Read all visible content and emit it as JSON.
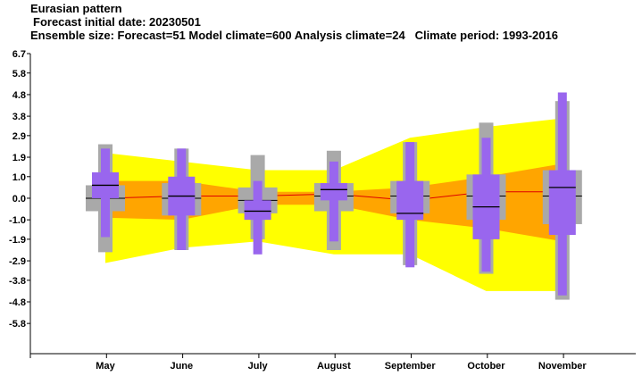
{
  "header": {
    "title": "Eurasian pattern",
    "initial_date": "Forecast initial date: 20230501",
    "ensemble": "Ensemble size: Forecast=51 Model climate=600 Analysis climate=24",
    "climate_period": "Climate period: 1993-2016"
  },
  "colors": {
    "outer_band": "#ffff00",
    "inner_band": "#ffa500",
    "climate_box": "#a9a9a9",
    "forecast_box": "#9966ee",
    "median_line": "#000000",
    "mean_line": "#dd0000"
  },
  "chart_data": {
    "type": "box",
    "title": "Eurasian pattern",
    "categories": [
      "May",
      "June",
      "July",
      "August",
      "September",
      "October",
      "November"
    ],
    "yticks": [
      6.7,
      5.8,
      4.8,
      3.8,
      2.9,
      1.9,
      1.0,
      0.0,
      -1.0,
      -1.9,
      -2.9,
      -3.8,
      -4.8,
      -5.8
    ],
    "ytick_labels": [
      "6.7",
      "5.8",
      "4.8",
      "3.8",
      "2.9",
      "1.9",
      "1.0",
      "0.0",
      "-1.0",
      "-1.9",
      "-2.9",
      "-3.8",
      "-4.8",
      "-5.8"
    ],
    "ylim": [
      -7.2,
      6.7
    ],
    "grid": false,
    "model_climate_outer_band": {
      "lower": [
        -3.0,
        -2.3,
        -2.0,
        -2.6,
        -2.6,
        -4.3,
        -4.3
      ],
      "upper": [
        2.1,
        1.7,
        1.3,
        1.3,
        2.8,
        3.3,
        3.7
      ]
    },
    "model_climate_inner_band": {
      "lower": [
        -0.9,
        -1.0,
        -0.3,
        -0.3,
        -1.0,
        -1.4,
        -2.0
      ],
      "upper": [
        0.8,
        0.8,
        0.3,
        0.3,
        0.5,
        1.0,
        1.6
      ]
    },
    "ensemble_mean": [
      0.0,
      0.1,
      0.1,
      0.2,
      -0.1,
      0.3,
      0.3
    ],
    "analysis_climate": [
      {
        "min": -2.5,
        "q25": -0.6,
        "median": 0.0,
        "q75": 0.6,
        "max": 2.5
      },
      {
        "min": -2.4,
        "q25": -0.8,
        "median": 0.0,
        "q75": 0.7,
        "max": 2.3
      },
      {
        "min": -1.9,
        "q25": -0.7,
        "median": -0.1,
        "q75": 0.5,
        "max": 2.0
      },
      {
        "min": -2.4,
        "q25": -0.6,
        "median": 0.1,
        "q75": 0.7,
        "max": 2.2
      },
      {
        "min": -3.1,
        "q25": -0.7,
        "median": 0.1,
        "q75": 0.8,
        "max": 2.6
      },
      {
        "min": -3.5,
        "q25": -1.0,
        "median": 0.1,
        "q75": 1.1,
        "max": 3.5
      },
      {
        "min": -4.7,
        "q25": -1.2,
        "median": 0.1,
        "q75": 1.3,
        "max": 4.5
      }
    ],
    "forecast": [
      {
        "min": -1.8,
        "q25": 0.0,
        "median": 0.6,
        "q75": 1.2,
        "max": 2.3
      },
      {
        "min": -2.4,
        "q25": -0.8,
        "median": 0.1,
        "q75": 1.0,
        "max": 2.3
      },
      {
        "min": -2.6,
        "q25": -1.0,
        "median": -0.6,
        "q75": -0.1,
        "max": 0.8
      },
      {
        "min": -2.0,
        "q25": -0.1,
        "median": 0.4,
        "q75": 0.7,
        "max": 1.7
      },
      {
        "min": -3.2,
        "q25": -1.0,
        "median": -0.7,
        "q75": 0.8,
        "max": 2.6
      },
      {
        "min": -3.4,
        "q25": -1.9,
        "median": -0.4,
        "q75": 1.1,
        "max": 2.8
      },
      {
        "min": -4.5,
        "q25": -1.7,
        "median": 0.5,
        "q75": 1.3,
        "max": 4.9
      }
    ]
  }
}
